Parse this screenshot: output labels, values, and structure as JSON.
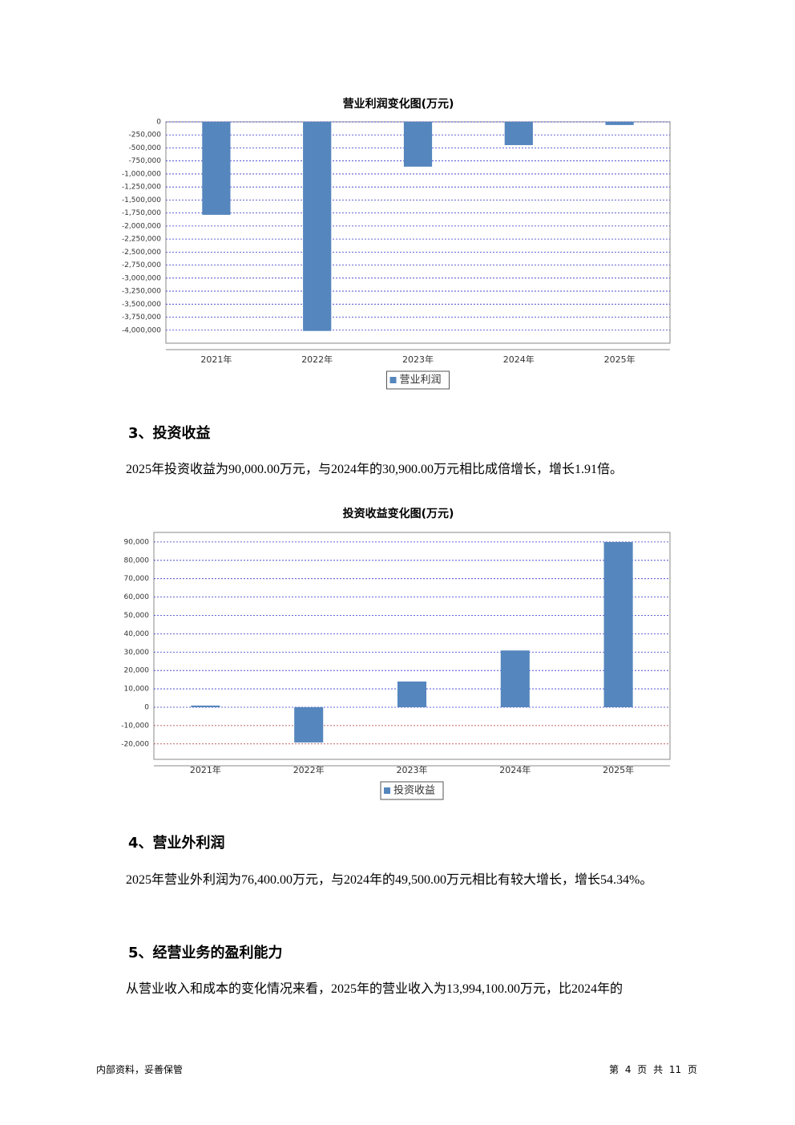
{
  "chart_data": [
    {
      "type": "bar",
      "title": "营业利润变化图(万元)",
      "categories": [
        "2021年",
        "2022年",
        "2023年",
        "2024年",
        "2025年"
      ],
      "series": [
        {
          "name": "营业利润",
          "color": "#5586bd",
          "values": [
            -1785000,
            -4015000,
            -860000,
            -446000,
            -60000
          ]
        }
      ],
      "ylim": [
        -4250000,
        0
      ],
      "yticks": [
        0,
        {
          "value": -250000,
          "label": "-250,000"
        },
        {
          "value": -500000,
          "label": "-500,000"
        },
        {
          "value": -750000,
          "label": "-750,000"
        },
        {
          "value": -1000000,
          "label": "-1,000,000"
        },
        {
          "value": -1250000,
          "label": "-1,250,000"
        },
        {
          "value": -1500000,
          "label": "-1,500,000"
        },
        {
          "value": -1750000,
          "label": "-1,750,000"
        },
        {
          "value": -2000000,
          "label": "-2,000,000"
        },
        {
          "value": -2250000,
          "label": "-2,250,000"
        },
        {
          "value": -2500000,
          "label": "-2,500,000"
        },
        {
          "value": -2750000,
          "label": "-2,750,000"
        },
        {
          "value": -3000000,
          "label": "-3,000,000"
        },
        {
          "value": -3250000,
          "label": "-3,250,000"
        },
        {
          "value": -3500000,
          "label": "-3,500,000"
        },
        {
          "value": -3750000,
          "label": "-3,750,000"
        },
        {
          "value": -4000000,
          "label": "-4,000,000"
        }
      ],
      "grid": true,
      "legend": "bottom"
    },
    {
      "type": "bar",
      "title": "投资收益变化图(万元)",
      "categories": [
        "2021年",
        "2022年",
        "2023年",
        "2024年",
        "2025年"
      ],
      "series": [
        {
          "name": "投资收益",
          "color": "#5586bd",
          "values": [
            900,
            -19200,
            14000,
            30900,
            90000
          ]
        }
      ],
      "ylim": [
        -28400,
        95200
      ],
      "yticks": [
        {
          "value": 90000,
          "label": "90,000"
        },
        {
          "value": 80000,
          "label": "80,000"
        },
        {
          "value": 70000,
          "label": "70,000"
        },
        {
          "value": 60000,
          "label": "60,000"
        },
        {
          "value": 50000,
          "label": "50,000"
        },
        {
          "value": 40000,
          "label": "40,000"
        },
        {
          "value": 30000,
          "label": "30,000"
        },
        {
          "value": 20000,
          "label": "20,000"
        },
        {
          "value": 10000,
          "label": "10,000"
        },
        0,
        {
          "value": -10000,
          "label": "-10,000"
        },
        {
          "value": -20000,
          "label": "-20,000"
        }
      ],
      "grid": true,
      "legend": "bottom"
    }
  ],
  "document": {
    "sections": [
      {
        "heading": "3、投资收益",
        "paragraph": "2025年投资收益为90,000.00万元，与2024年的30,900.00万元相比成倍增长，增长1.91倍。"
      },
      {
        "heading": "4、营业外利润",
        "paragraph": "2025年营业外利润为76,400.00万元，与2024年的49,500.00万元相比有较大增长，增长54.34%。"
      },
      {
        "heading": "5、经营业务的盈利能力",
        "paragraph": "从营业收入和成本的变化情况来看，2025年的营业收入为13,994,100.00万元，比2024年的"
      }
    ],
    "footer": {
      "left": "内部资料，妥善保管",
      "right": "第 4 页 共 11 页"
    }
  }
}
